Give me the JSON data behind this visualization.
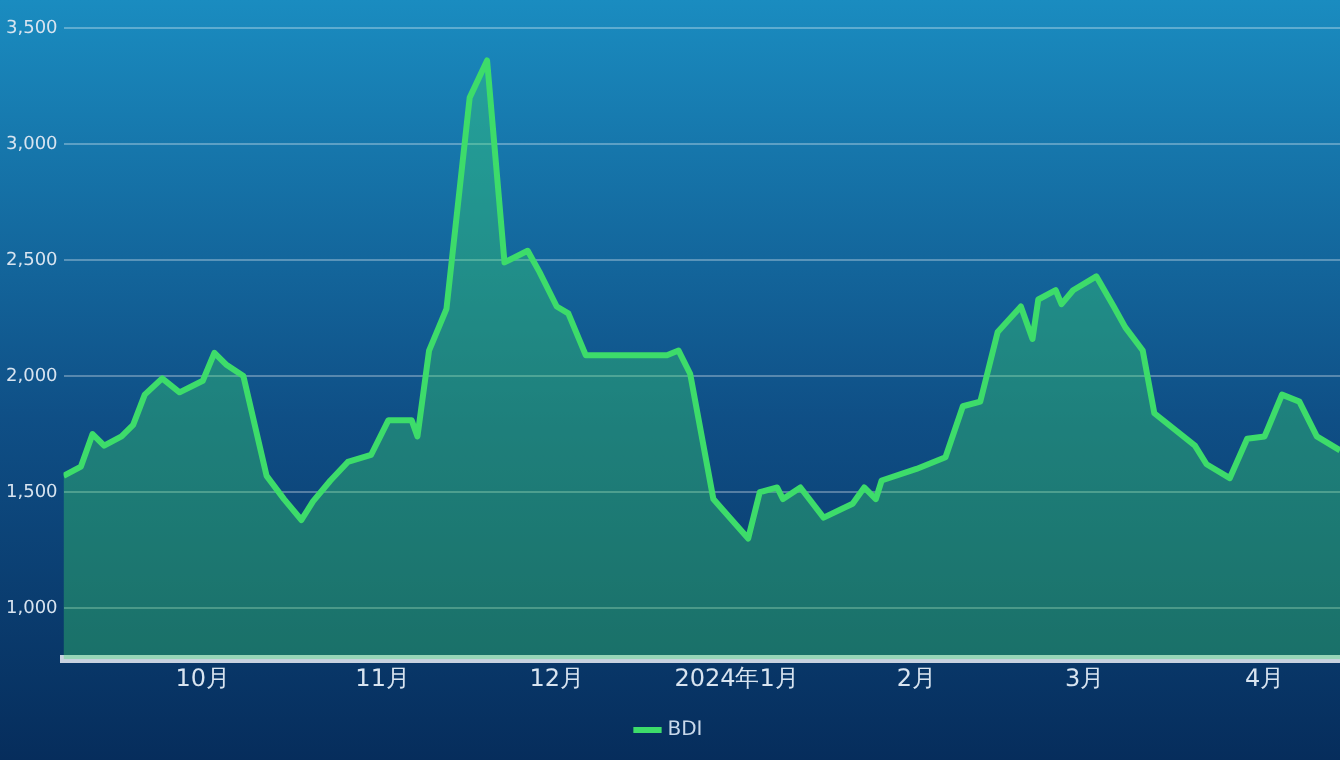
{
  "chart_data": {
    "type": "area",
    "legend": "bottom",
    "grid": "y",
    "x": [
      "2023-09-07",
      "2023-09-10",
      "2023-09-12",
      "2023-09-14",
      "2023-09-17",
      "2023-09-19",
      "2023-09-21",
      "2023-09-24",
      "2023-09-27",
      "2023-10-01",
      "2023-10-03",
      "2023-10-05",
      "2023-10-08",
      "2023-10-12",
      "2023-10-15",
      "2023-10-18",
      "2023-10-20",
      "2023-10-23",
      "2023-10-26",
      "2023-10-30",
      "2023-11-02",
      "2023-11-06",
      "2023-11-07",
      "2023-11-09",
      "2023-11-12",
      "2023-11-16",
      "2023-11-19",
      "2023-11-22",
      "2023-11-26",
      "2023-11-28",
      "2023-12-01",
      "2023-12-03",
      "2023-12-06",
      "2023-12-19",
      "2023-12-20",
      "2023-12-22",
      "2023-12-24",
      "2023-12-28",
      "2024-01-03",
      "2024-01-05",
      "2024-01-08",
      "2024-01-09",
      "2024-01-12",
      "2024-01-16",
      "2024-01-21",
      "2024-01-23",
      "2024-01-25",
      "2024-01-26",
      "2024-02-01",
      "2024-02-06",
      "2024-02-09",
      "2024-02-12",
      "2024-02-15",
      "2024-02-19",
      "2024-02-21",
      "2024-02-22",
      "2024-02-25",
      "2024-02-26",
      "2024-02-28",
      "2024-03-03",
      "2024-03-06",
      "2024-03-08",
      "2024-03-11",
      "2024-03-13",
      "2024-03-20",
      "2024-03-22",
      "2024-03-26",
      "2024-03-29",
      "2024-04-01",
      "2024-04-04",
      "2024-04-07",
      "2024-04-10",
      "2024-04-14"
    ],
    "series": [
      {
        "name": "BDI",
        "color": "#3ddc6a",
        "values": [
          1570,
          1610,
          1750,
          1700,
          1740,
          1790,
          1920,
          1990,
          1930,
          1980,
          2100,
          2050,
          2000,
          1570,
          1470,
          1380,
          1460,
          1550,
          1630,
          1660,
          1810,
          1810,
          1740,
          2110,
          2290,
          3200,
          3360,
          2490,
          2540,
          2450,
          2300,
          2270,
          2090,
          2090,
          2090,
          2110,
          2010,
          1470,
          1300,
          1500,
          1520,
          1470,
          1520,
          1390,
          1450,
          1520,
          1470,
          1550,
          1600,
          1650,
          1870,
          1890,
          2190,
          2300,
          2160,
          2330,
          2370,
          2310,
          2370,
          2430,
          2300,
          2210,
          2110,
          1840,
          1700,
          1620,
          1560,
          1730,
          1740,
          1920,
          1890,
          1740,
          1680
        ]
      }
    ],
    "xlim": [
      "2023-09-07",
      "2024-04-14"
    ],
    "xticks": [
      {
        "value": "2023-10-01",
        "label": "10月"
      },
      {
        "value": "2023-11-01",
        "label": "11月"
      },
      {
        "value": "2023-12-01",
        "label": "12月"
      },
      {
        "value": "2024-01-01",
        "label": "2024年1月"
      },
      {
        "value": "2024-02-01",
        "label": "2月"
      },
      {
        "value": "2024-03-01",
        "label": "3月"
      },
      {
        "value": "2024-04-01",
        "label": "4月"
      }
    ],
    "ylim": [
      780,
      3500
    ],
    "yticks": [
      {
        "value": 1000,
        "label": "1,000"
      },
      {
        "value": 1500,
        "label": "1,500"
      },
      {
        "value": 2000,
        "label": "2,000"
      },
      {
        "value": 2500,
        "label": "2,500"
      },
      {
        "value": 3000,
        "label": "3,000"
      },
      {
        "value": 3500,
        "label": "3,500"
      }
    ]
  }
}
